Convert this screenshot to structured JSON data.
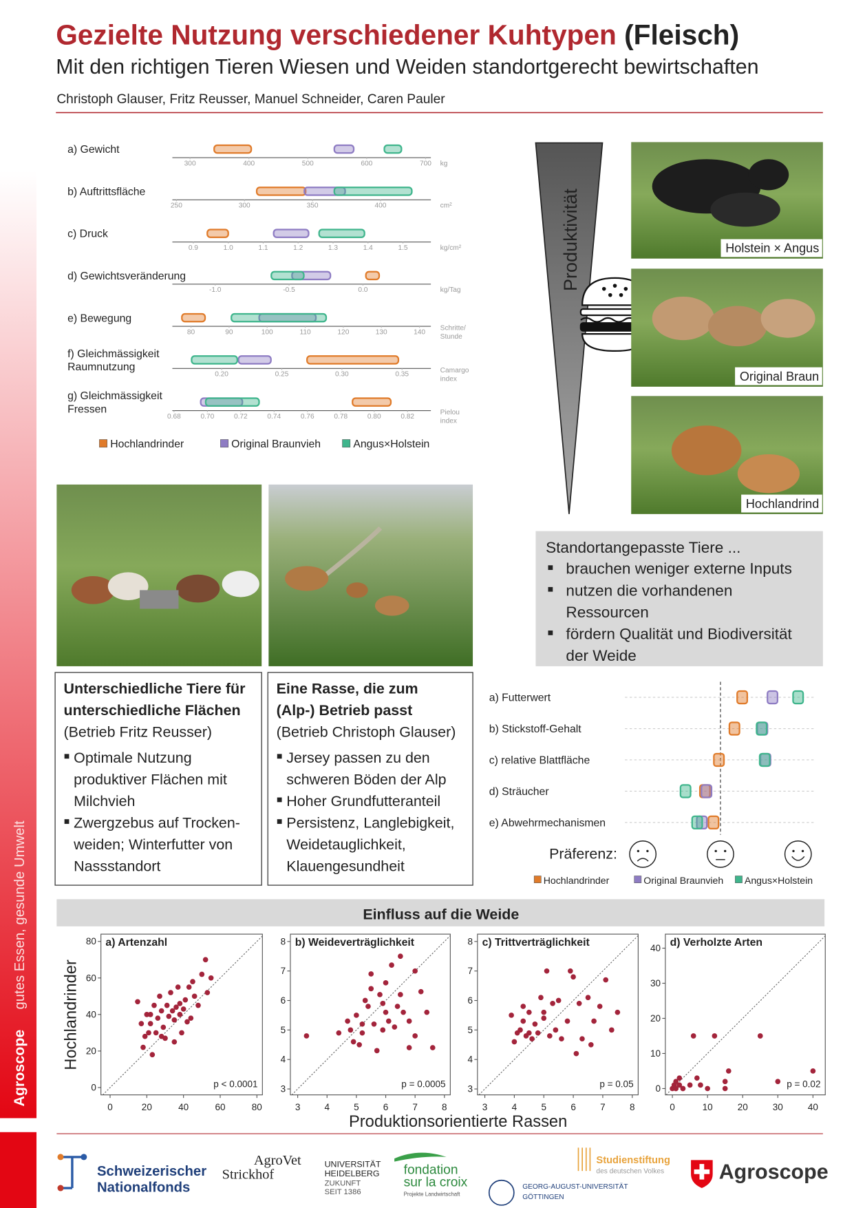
{
  "header": {
    "title": "Gezielte Nutzung verschiedener Kuhtypen",
    "title_suffix": "(Fleisch)",
    "subtitle": "Mit den richtigen Tieren Wiesen und Weiden standortgerecht bewirtschaften",
    "authors": "Christoph Glauser, Fritz Reusser, Manuel Schneider, Caren Pauler"
  },
  "sidebar": {
    "brand": "Agroscope",
    "slogan": "gutes Essen, gesunde Umwelt"
  },
  "productivity": {
    "label": "Produktivität",
    "photos": [
      "Holstein × Angus",
      "Original Braun",
      "Hochlandrind"
    ]
  },
  "benefits": {
    "title": "Standortangepasste Tiere ...",
    "bullets": [
      [
        "brauchen weniger externe Inputs"
      ],
      [
        "nutzen die vorhandenen",
        "Ressourcen"
      ],
      [
        "fördern Qualität und Biodiversität",
        "der Weide"
      ]
    ]
  },
  "cases": [
    {
      "title": [
        "Unterschiedliche Tiere für",
        "unterschiedliche Flächen"
      ],
      "subtitle": "(Betrieb Fritz Reusser)",
      "bullets": [
        [
          "Optimale Nutzung",
          "produktiver Flächen mit",
          "Milchvieh"
        ],
        [
          "Zwergzebus auf Trocken-",
          "weiden; Winterfutter von",
          "Nassstandort"
        ]
      ]
    },
    {
      "title": [
        "Eine Rasse, die zum",
        "(Alp-) Betrieb passt"
      ],
      "subtitle": "(Betrieb Christoph Glauser)",
      "bullets": [
        [
          "Jersey passen zu den",
          "schweren Böden der Alp"
        ],
        [
          "Hoher Grundfutteranteil"
        ],
        [
          "Persistenz, Langlebigkeit,",
          "Weidetauglichkeit,",
          "Klauengesundheit"
        ]
      ]
    }
  ],
  "chart_data": [
    {
      "type": "range-bar",
      "series": [
        {
          "name": "Hochlandrinder",
          "color": "#e07b2a",
          "values": [
            [
              341,
              404
            ],
            [
              309,
              345
            ],
            [
              0.94,
              1.0
            ],
            [
              0.02,
              0.11
            ],
            [
              77.6,
              83.7
            ],
            [
              0.271,
              0.347
            ],
            [
              0.787,
              0.81
            ]
          ]
        },
        {
          "name": "Original Braunvieh",
          "color": "#8e7cc3",
          "values": [
            [
              545,
              578
            ],
            [
              344,
              374
            ],
            [
              1.13,
              1.23
            ],
            [
              -0.48,
              -0.22
            ],
            [
              97.9,
              112.8
            ],
            [
              0.214,
              0.241
            ],
            [
              0.696,
              0.721
            ]
          ]
        },
        {
          "name": "Angus×Holstein",
          "color": "#3fb58c",
          "values": [
            [
              630,
              659
            ],
            [
              366,
              423
            ],
            [
              1.26,
              1.39
            ],
            [
              -0.62,
              -0.4
            ],
            [
              90.6,
              115.5
            ],
            [
              0.175,
              0.213
            ],
            [
              0.699,
              0.731
            ]
          ]
        }
      ],
      "panels": [
        {
          "label": [
            "a) Gewicht"
          ],
          "unit": [
            "kg"
          ],
          "xlim": [
            270,
            709
          ],
          "xticks": [
            300,
            400,
            500,
            600,
            700
          ]
        },
        {
          "label": [
            "b) Auftrittsfläche"
          ],
          "unit": [
            "cm²"
          ],
          "xlim": [
            247,
            437
          ],
          "xticks": [
            250,
            300,
            350,
            400
          ]
        },
        {
          "label": [
            "c) Druck"
          ],
          "unit": [
            "kg/cm²"
          ],
          "xlim": [
            0.84,
            1.58
          ],
          "xticks": [
            0.9,
            {
              "value": 1.0,
              "label": "1.0"
            },
            1.1,
            1.2,
            1.3,
            1.4,
            1.5
          ]
        },
        {
          "label": [
            "d) Gewichtsveränderung"
          ],
          "unit": [
            "kg/Tag"
          ],
          "xlim": [
            -1.29,
            0.46
          ],
          "xticks": [
            {
              "value": -1.0,
              "label": "-1.0"
            },
            -0.5,
            {
              "value": 0,
              "label": "0.0"
            }
          ]
        },
        {
          "label": [
            "e) Bewegung"
          ],
          "unit": [
            "Schritte/",
            "Stunde"
          ],
          "xlim": [
            75.1,
            143
          ],
          "xticks": [
            80,
            90,
            100,
            110,
            120,
            130,
            140
          ]
        },
        {
          "label": [
            "f) Gleichmässigkeit",
            "Raumnutzung"
          ],
          "unit": [
            "Camargo",
            "index"
          ],
          "xlim": [
            0.159,
            0.374
          ],
          "xticks": [
            {
              "value": 0.2,
              "label": "0.20"
            },
            0.25,
            {
              "value": 0.3,
              "label": "0.30"
            },
            0.35
          ]
        },
        {
          "label": [
            "g) Gleichmässigkeit",
            "Fressen"
          ],
          "unit": [
            "Pielou",
            "index"
          ],
          "xlim": [
            0.679,
            0.834
          ],
          "xticks": [
            0.68,
            {
              "value": 0.7,
              "label": "0.70"
            },
            0.72,
            0.74,
            0.76,
            0.78,
            {
              "value": 0.8,
              "label": "0.80"
            },
            0.82
          ]
        }
      ]
    },
    {
      "type": "dot",
      "xlabel": "Präferenz:",
      "categories": [
        "a) Futterwert",
        "b) Stickstoff-Gehalt",
        "c) relative Blattfläche",
        "d) Sträucher",
        "e) Abwehrmechanismen"
      ],
      "xlim": [
        -1.2,
        1.2
      ],
      "xticks": [
        -1,
        0,
        1
      ],
      "reference_line": 0,
      "series": [
        {
          "name": "Hochlandrinder",
          "color": "#e07b2a",
          "values": [
            0.28,
            0.18,
            -0.02,
            -0.2,
            -0.09
          ]
        },
        {
          "name": "Original Braunvieh",
          "color": "#8e7cc3",
          "values": [
            0.67,
            0.54,
            0.58,
            -0.18,
            -0.24
          ]
        },
        {
          "name": "Angus×Holstein",
          "color": "#3fb58c",
          "values": [
            1.0,
            0.53,
            0.57,
            -0.45,
            -0.3
          ]
        }
      ]
    },
    {
      "type": "scatter",
      "title": "Einfluss auf die Weide",
      "xlabel": "Produktionsorientierte Rassen",
      "ylabel": "Hochlandrinder",
      "color": "#a3243b",
      "panels": [
        {
          "title": "a) Artenzahl",
          "annotation": "p < 0.0001",
          "xlim": [
            -5,
            83
          ],
          "ylim": [
            -4,
            84
          ],
          "xticks": [
            0,
            20,
            40,
            60,
            80
          ],
          "yticks": [
            0,
            20,
            40,
            60,
            80
          ],
          "x": [
            15,
            17,
            18,
            19,
            20,
            21,
            22,
            23,
            24,
            25,
            26,
            27,
            28,
            29,
            30,
            31,
            32,
            33,
            34,
            35,
            36,
            37,
            38,
            39,
            40,
            41,
            42,
            43,
            44,
            45,
            46,
            48,
            50,
            52,
            53,
            55,
            28,
            35,
            22,
            38
          ],
          "y": [
            47,
            35,
            22,
            28,
            40,
            30,
            35,
            18,
            45,
            30,
            38,
            50,
            42,
            33,
            27,
            45,
            39,
            52,
            42,
            37,
            44,
            55,
            40,
            30,
            43,
            48,
            36,
            55,
            38,
            58,
            50,
            45,
            62,
            70,
            52,
            60,
            28,
            25,
            40,
            46
          ]
        },
        {
          "title": "b) Weideverträglichkeit",
          "annotation": "p = 0.0005",
          "xlim": [
            2.75,
            8.2
          ],
          "ylim": [
            2.8,
            8.25
          ],
          "xticks": [
            3,
            4,
            5,
            6,
            7,
            8
          ],
          "yticks": [
            3,
            4,
            5,
            6,
            7,
            8
          ],
          "x": [
            3.3,
            4.4,
            4.7,
            4.8,
            5.0,
            5.1,
            5.2,
            5.3,
            5.4,
            5.5,
            5.6,
            5.7,
            5.8,
            5.9,
            6.0,
            6.1,
            6.2,
            6.3,
            6.4,
            6.5,
            6.6,
            6.8,
            7.0,
            7.2,
            7.4,
            7.6,
            5.2,
            5.9,
            6.5,
            4.9,
            5.5,
            6.8,
            7.0,
            6.0
          ],
          "y": [
            4.8,
            4.9,
            5.3,
            5.0,
            5.5,
            4.5,
            4.9,
            6.0,
            5.8,
            6.4,
            5.2,
            4.3,
            6.2,
            5.0,
            6.6,
            5.3,
            7.2,
            5.1,
            5.8,
            6.2,
            5.6,
            4.4,
            7.0,
            6.3,
            5.6,
            4.4,
            5.2,
            5.9,
            7.5,
            4.6,
            6.9,
            5.3,
            4.8,
            5.6
          ]
        },
        {
          "title": "c) Trittverträglichkeit",
          "annotation": "p = 0.05",
          "xlim": [
            2.75,
            8.2
          ],
          "ylim": [
            2.8,
            8.25
          ],
          "xticks": [
            3,
            4,
            5,
            6,
            7,
            8
          ],
          "yticks": [
            3,
            4,
            5,
            6,
            7,
            8
          ],
          "x": [
            3.9,
            4.0,
            4.1,
            4.2,
            4.3,
            4.4,
            4.5,
            4.6,
            4.7,
            4.8,
            4.9,
            5.0,
            5.1,
            5.2,
            5.3,
            5.5,
            5.6,
            5.8,
            5.9,
            6.0,
            6.2,
            6.3,
            6.5,
            6.7,
            6.9,
            7.1,
            7.3,
            7.5,
            4.5,
            5.0,
            5.4,
            6.1,
            6.6,
            4.3
          ],
          "y": [
            5.5,
            4.6,
            4.9,
            5.0,
            5.8,
            4.8,
            5.6,
            4.7,
            5.2,
            4.9,
            6.1,
            5.4,
            7.0,
            4.8,
            5.9,
            6.0,
            4.7,
            5.3,
            7.0,
            6.8,
            5.9,
            4.7,
            6.1,
            5.3,
            5.8,
            6.7,
            5.0,
            5.6,
            4.9,
            5.6,
            5.0,
            4.2,
            4.5,
            5.3
          ]
        },
        {
          "title": "d) Verholzte Arten",
          "annotation": "p = 0.02",
          "xlim": [
            -2,
            43.5
          ],
          "ylim": [
            -1.8,
            44
          ],
          "xticks": [
            0,
            10,
            20,
            30,
            40
          ],
          "yticks": [
            0,
            10,
            20,
            30,
            40
          ],
          "x": [
            0,
            0.5,
            1,
            1,
            2,
            2,
            3,
            5,
            6,
            7,
            8,
            10,
            12,
            15,
            15,
            16,
            25,
            30,
            40,
            1,
            3
          ],
          "y": [
            0,
            1,
            0,
            2,
            1,
            3,
            0,
            1,
            15,
            3,
            1,
            0,
            15,
            0,
            2,
            5,
            15,
            2,
            5,
            0,
            0
          ]
        }
      ]
    }
  ],
  "logos": {
    "snf": [
      "Schweizerischer",
      "Nationalfonds"
    ],
    "agrovet": [
      "AgroVet",
      "Strickhof"
    ],
    "heidelberg": [
      "UNIVERSITÄT",
      "HEIDELBERG",
      "ZUKUNFT",
      "SEIT 1386"
    ],
    "fondation": [
      "fondation",
      "sur la croix",
      "Projekte Landwirtschaft"
    ],
    "studienstiftung": [
      "Studienstiftung",
      "des deutschen Volkes"
    ],
    "goettingen": [
      "GEORG-AUGUST-UNIVERSITÄT",
      "GÖTTINGEN"
    ],
    "agroscope": "Agroscope"
  }
}
